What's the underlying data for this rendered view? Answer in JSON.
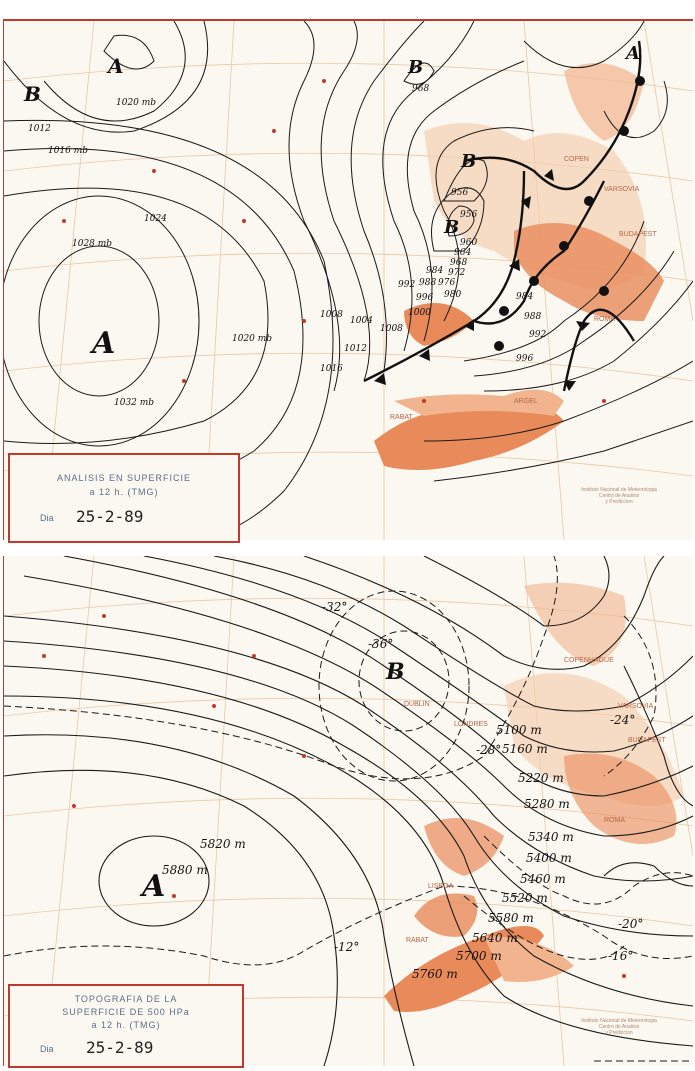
{
  "surface_chart": {
    "caption": {
      "title": "ANALISIS EN SUPERFICIE",
      "time": "a 12 h. (TMG)",
      "dia_label": "Dia",
      "date": "25-2-89"
    },
    "pressure_centers": [
      {
        "type": "B",
        "label": "B"
      },
      {
        "type": "A",
        "label": "A"
      },
      {
        "type": "B",
        "label": "B"
      },
      {
        "type": "B",
        "label": "B"
      },
      {
        "type": "B",
        "label": "B"
      },
      {
        "type": "A",
        "label": "A"
      },
      {
        "type": "A",
        "label": "A"
      }
    ],
    "isobar_labels": [
      "1020 mb",
      "1012",
      "1016 mb",
      "1024",
      "1028 mb",
      "1032 mb",
      "1020 mb",
      "1016",
      "1012",
      "1008",
      "1004",
      "1008",
      "1000",
      "996",
      "992",
      "988",
      "984",
      "980",
      "976",
      "972",
      "968",
      "964",
      "960",
      "956",
      "956",
      "968",
      "984",
      "988",
      "992",
      "996"
    ],
    "cities": [
      "COPEN",
      "VARSOVIA",
      "BUDAPEST",
      "ROMA",
      "ARGEL",
      "RABAT"
    ],
    "credit": [
      "Instituto Nacional de Meteorologia",
      "Centro de Analisis",
      "y Prediccion"
    ]
  },
  "upper_chart": {
    "caption": {
      "title_line1": "TOPOGRAFIA DE LA",
      "title_line2": "SUPERFICIE DE 500 HPa",
      "time": "a 12 h. (TMG)",
      "dia_label": "Dia",
      "date": "25-2-89"
    },
    "pressure_centers": [
      {
        "type": "B",
        "label": "B"
      },
      {
        "type": "A",
        "label": "A"
      }
    ],
    "contour_labels": [
      "5100 m",
      "5160 m",
      "5220 m",
      "5280 m",
      "5340 m",
      "5400 m",
      "5460 m",
      "5520 m",
      "5580 m",
      "5640 m",
      "5700 m",
      "5760 m",
      "5820 m",
      "5880 m"
    ],
    "isotherm_labels": [
      "-32°",
      "-36°",
      "-28°",
      "-24°",
      "-20°",
      "-16°",
      "-12°"
    ],
    "cities": [
      "LONDRES",
      "DUBLIN",
      "COPENHAGUE",
      "VARSOVIA",
      "BUDAPEST",
      "ROMA",
      "LISBOA",
      "RABAT"
    ],
    "credit": [
      "Instituto Nacional de Meteorologia",
      "Centro de Analisis",
      "y Prediccion"
    ]
  },
  "colors": {
    "land": "#e98a5a",
    "land_light": "#f2b48e",
    "contour": "#1a1a1a",
    "frame": "#c0392b",
    "grid": "#e9c8a5",
    "caption_text": "#5a6d88"
  }
}
